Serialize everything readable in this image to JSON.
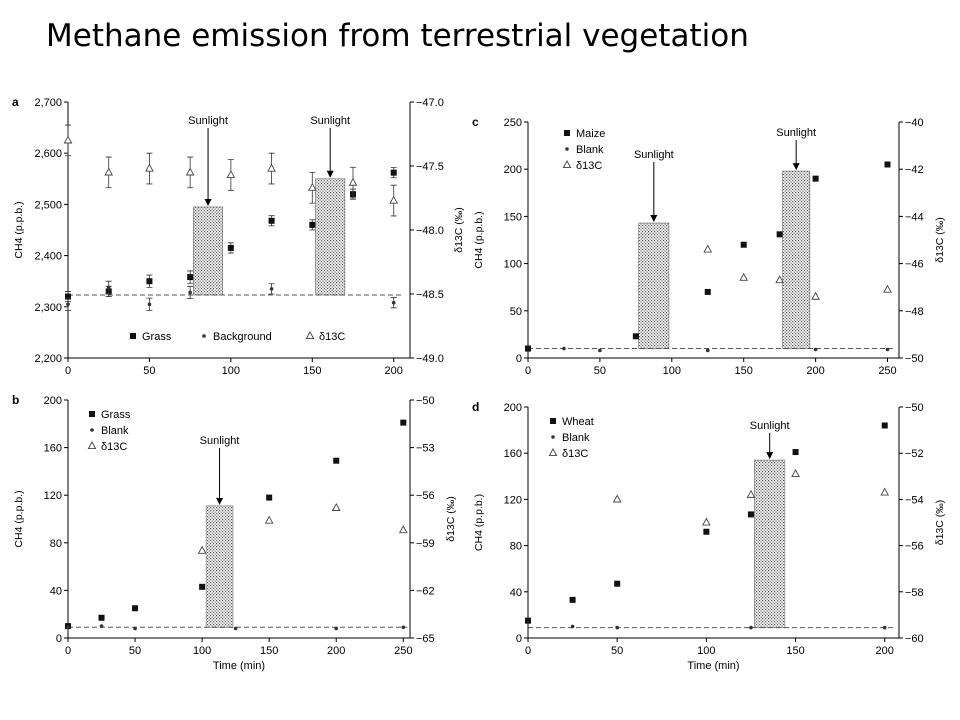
{
  "slide": {
    "title": "Methane emission from terrestrial vegetation"
  },
  "chart_data": [
    {
      "panel": "a",
      "type": "scatter",
      "xlabel": "",
      "ylabel": "CH4 (p.p.b.)",
      "y2label": "δ13C (‰)",
      "xlim": [
        0,
        210
      ],
      "ylim": [
        2200,
        2700
      ],
      "y2lim": [
        -49.0,
        -47.0
      ],
      "xticks": [
        0,
        50,
        100,
        150,
        200
      ],
      "yticks": [
        2200,
        2300,
        2400,
        2500,
        2600,
        2700
      ],
      "y2ticks": [
        -49.0,
        -48.5,
        -48.0,
        -47.5,
        -47.0
      ],
      "xticklabels": [
        "0",
        "50",
        "100",
        "150",
        "200"
      ],
      "yticklabels": [
        "2,200",
        "2,300",
        "2,400",
        "2,500",
        "2,600",
        "2,700"
      ],
      "y2ticklabels": [
        "−49.0",
        "−48.5",
        "−48.0",
        "−47.5",
        "−47.0"
      ],
      "legend_position": "bottom",
      "baseline": 2323,
      "sunlight": [
        {
          "x": [
            77,
            95
          ],
          "top": 2495,
          "label": "Sunlight"
        },
        {
          "x": [
            152,
            170
          ],
          "top": 2550,
          "label": "Sunlight"
        }
      ],
      "series": [
        {
          "name": "Grass",
          "marker": "square",
          "axis": "left",
          "x": [
            0,
            25,
            50,
            75,
            100,
            125,
            150,
            175,
            200
          ],
          "y": [
            2320,
            2330,
            2350,
            2358,
            2415,
            2468,
            2460,
            2520,
            2562
          ],
          "err": [
            10,
            10,
            12,
            12,
            10,
            10,
            10,
            10,
            10
          ]
        },
        {
          "name": "Background",
          "marker": "dot",
          "axis": "left",
          "x": [
            0,
            25,
            50,
            75,
            125,
            200
          ],
          "y": [
            2305,
            2338,
            2305,
            2328,
            2335,
            2308
          ],
          "err": [
            12,
            12,
            12,
            12,
            10,
            10
          ]
        },
        {
          "name": "δ13C",
          "marker": "triangle",
          "axis": "right",
          "x": [
            0,
            25,
            50,
            75,
            100,
            125,
            150,
            175,
            200
          ],
          "y": [
            -47.3,
            -47.55,
            -47.52,
            -47.55,
            -47.57,
            -47.52,
            -47.67,
            -47.63,
            -47.77
          ],
          "err": [
            0.12,
            0.12,
            0.12,
            0.12,
            0.12,
            0.12,
            0.12,
            0.12,
            0.12
          ]
        }
      ]
    },
    {
      "panel": "b",
      "type": "scatter",
      "xlabel": "Time (min)",
      "ylabel": "CH4 (p.p.b.)",
      "y2label": "δ13C (‰)",
      "xlim": [
        0,
        255
      ],
      "ylim": [
        0,
        200
      ],
      "y2lim": [
        -65,
        -50
      ],
      "xticks": [
        0,
        50,
        100,
        150,
        200,
        250
      ],
      "yticks": [
        0,
        40,
        80,
        120,
        160,
        200
      ],
      "y2ticks": [
        -65,
        -62,
        -59,
        -56,
        -53,
        -50
      ],
      "xticklabels": [
        "0",
        "50",
        "100",
        "150",
        "200",
        "250"
      ],
      "yticklabels": [
        "0",
        "40",
        "80",
        "120",
        "160",
        "200"
      ],
      "y2ticklabels": [
        "−65",
        "−62",
        "−59",
        "−56",
        "−53",
        "−50"
      ],
      "legend_position": "top-left",
      "baseline": 9,
      "sunlight": [
        {
          "x": [
            103,
            123
          ],
          "top": 111,
          "label": "Sunlight"
        }
      ],
      "series": [
        {
          "name": "Grass",
          "marker": "square",
          "axis": "left",
          "x": [
            0,
            25,
            50,
            100,
            150,
            200,
            250
          ],
          "y": [
            10,
            17,
            25,
            43,
            118,
            149,
            181
          ]
        },
        {
          "name": "Blank",
          "marker": "dot",
          "axis": "left",
          "x": [
            0,
            25,
            50,
            125,
            200,
            250
          ],
          "y": [
            9,
            10,
            8,
            8,
            8,
            9
          ]
        },
        {
          "name": "δ13C",
          "marker": "triangle",
          "axis": "right",
          "x": [
            100,
            150,
            200,
            250
          ],
          "y": [
            -59.5,
            -57.6,
            -56.8,
            -58.2
          ]
        }
      ]
    },
    {
      "panel": "c",
      "type": "scatter",
      "xlabel": "",
      "ylabel": "CH4 (p.p.b.)",
      "y2label": "δ13C (‰)",
      "xlim": [
        0,
        258
      ],
      "ylim": [
        0,
        250
      ],
      "y2lim": [
        -50,
        -40
      ],
      "xticks": [
        0,
        50,
        100,
        150,
        200,
        250
      ],
      "yticks": [
        0,
        50,
        100,
        150,
        200,
        250
      ],
      "y2ticks": [
        -50,
        -48,
        -46,
        -44,
        -42,
        -40
      ],
      "xticklabels": [
        "0",
        "50",
        "100",
        "150",
        "200",
        "250"
      ],
      "yticklabels": [
        "0",
        "50",
        "100",
        "150",
        "200",
        "250"
      ],
      "y2ticklabels": [
        "−50",
        "−48",
        "−46",
        "−44",
        "−42",
        "−40"
      ],
      "legend_position": "top-left",
      "baseline": 10,
      "sunlight": [
        {
          "x": [
            77,
            98
          ],
          "top": 143,
          "label": "Sunlight"
        },
        {
          "x": [
            177,
            196
          ],
          "top": 198,
          "label": "Sunlight"
        }
      ],
      "series": [
        {
          "name": "Maize",
          "marker": "square",
          "axis": "left",
          "x": [
            0,
            75,
            125,
            150,
            175,
            200,
            250
          ],
          "y": [
            10,
            23,
            70,
            120,
            131,
            190,
            205
          ]
        },
        {
          "name": "Blank",
          "marker": "dot",
          "axis": "left",
          "x": [
            25,
            50,
            125,
            200,
            250
          ],
          "y": [
            10,
            8,
            8,
            9,
            9
          ]
        },
        {
          "name": "δ13C",
          "marker": "triangle",
          "axis": "right",
          "x": [
            125,
            150,
            175,
            200,
            250
          ],
          "y": [
            -45.4,
            -46.6,
            -46.7,
            -47.4,
            -47.1
          ]
        }
      ]
    },
    {
      "panel": "d",
      "type": "scatter",
      "xlabel": "Time (min)",
      "ylabel": "CH4 (p.p.b.)",
      "y2label": "δ13C (‰)",
      "xlim": [
        0,
        208
      ],
      "ylim": [
        0,
        200
      ],
      "y2lim": [
        -60,
        -50
      ],
      "xticks": [
        0,
        50,
        100,
        150,
        200
      ],
      "yticks": [
        0,
        40,
        80,
        120,
        160,
        200
      ],
      "y2ticks": [
        -60,
        -58,
        -56,
        -54,
        -52,
        -50
      ],
      "xticklabels": [
        "0",
        "50",
        "100",
        "150",
        "200"
      ],
      "yticklabels": [
        "0",
        "40",
        "80",
        "120",
        "160",
        "200"
      ],
      "y2ticklabels": [
        "−60",
        "−58",
        "−56",
        "−54",
        "−52",
        "−50"
      ],
      "legend_position": "top-left",
      "baseline": 9,
      "sunlight": [
        {
          "x": [
            127,
            144
          ],
          "top": 154,
          "label": "Sunlight"
        }
      ],
      "series": [
        {
          "name": "Wheat",
          "marker": "square",
          "axis": "left",
          "x": [
            0,
            25,
            50,
            100,
            125,
            150,
            200
          ],
          "y": [
            15,
            33,
            47,
            92,
            107,
            161,
            184
          ]
        },
        {
          "name": "Blank",
          "marker": "dot",
          "axis": "left",
          "x": [
            25,
            50,
            125,
            200
          ],
          "y": [
            10,
            9,
            9,
            9
          ]
        },
        {
          "name": "δ13C",
          "marker": "triangle",
          "axis": "right",
          "x": [
            50,
            100,
            125,
            150,
            200
          ],
          "y": [
            -54.0,
            -55.0,
            -53.8,
            -52.9,
            -53.7
          ]
        }
      ]
    }
  ]
}
